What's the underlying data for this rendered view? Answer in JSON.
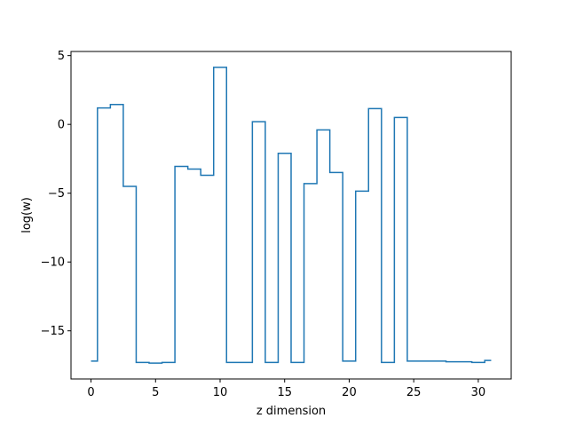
{
  "chart_data": {
    "type": "line",
    "drawstyle": "steps-mid",
    "title": "",
    "xlabel": "z dimension",
    "ylabel": "log(w)",
    "xlim": [
      -1.55,
      32.55
    ],
    "ylim": [
      -18.5,
      5.3
    ],
    "xticks": [
      0,
      5,
      10,
      15,
      20,
      25,
      30
    ],
    "xtick_labels": [
      "0",
      "5",
      "10",
      "15",
      "20",
      "25",
      "30"
    ],
    "yticks": [
      5,
      0,
      -5,
      -10,
      -15
    ],
    "ytick_labels": [
      "5",
      "0",
      "−5",
      "−10",
      "−15"
    ],
    "grid": false,
    "legend": "none",
    "series": [
      {
        "color": "#1f77b4",
        "x": [
          0,
          1,
          2,
          3,
          4,
          5,
          6,
          7,
          8,
          9,
          10,
          11,
          12,
          13,
          14,
          15,
          16,
          17,
          18,
          19,
          20,
          21,
          22,
          23,
          24,
          25,
          26,
          27,
          28,
          29,
          30,
          31
        ],
        "values": [
          -17.2,
          1.2,
          1.45,
          -4.5,
          -17.3,
          -17.35,
          -17.3,
          -3.05,
          -3.25,
          -3.7,
          4.15,
          -17.3,
          -17.3,
          0.2,
          -17.3,
          -2.1,
          -17.3,
          -4.3,
          -0.4,
          -3.5,
          -17.2,
          -4.85,
          1.15,
          -17.3,
          0.5,
          -17.2,
          -17.2,
          -17.2,
          -17.25,
          -17.25,
          -17.3,
          -17.15
        ]
      }
    ]
  }
}
